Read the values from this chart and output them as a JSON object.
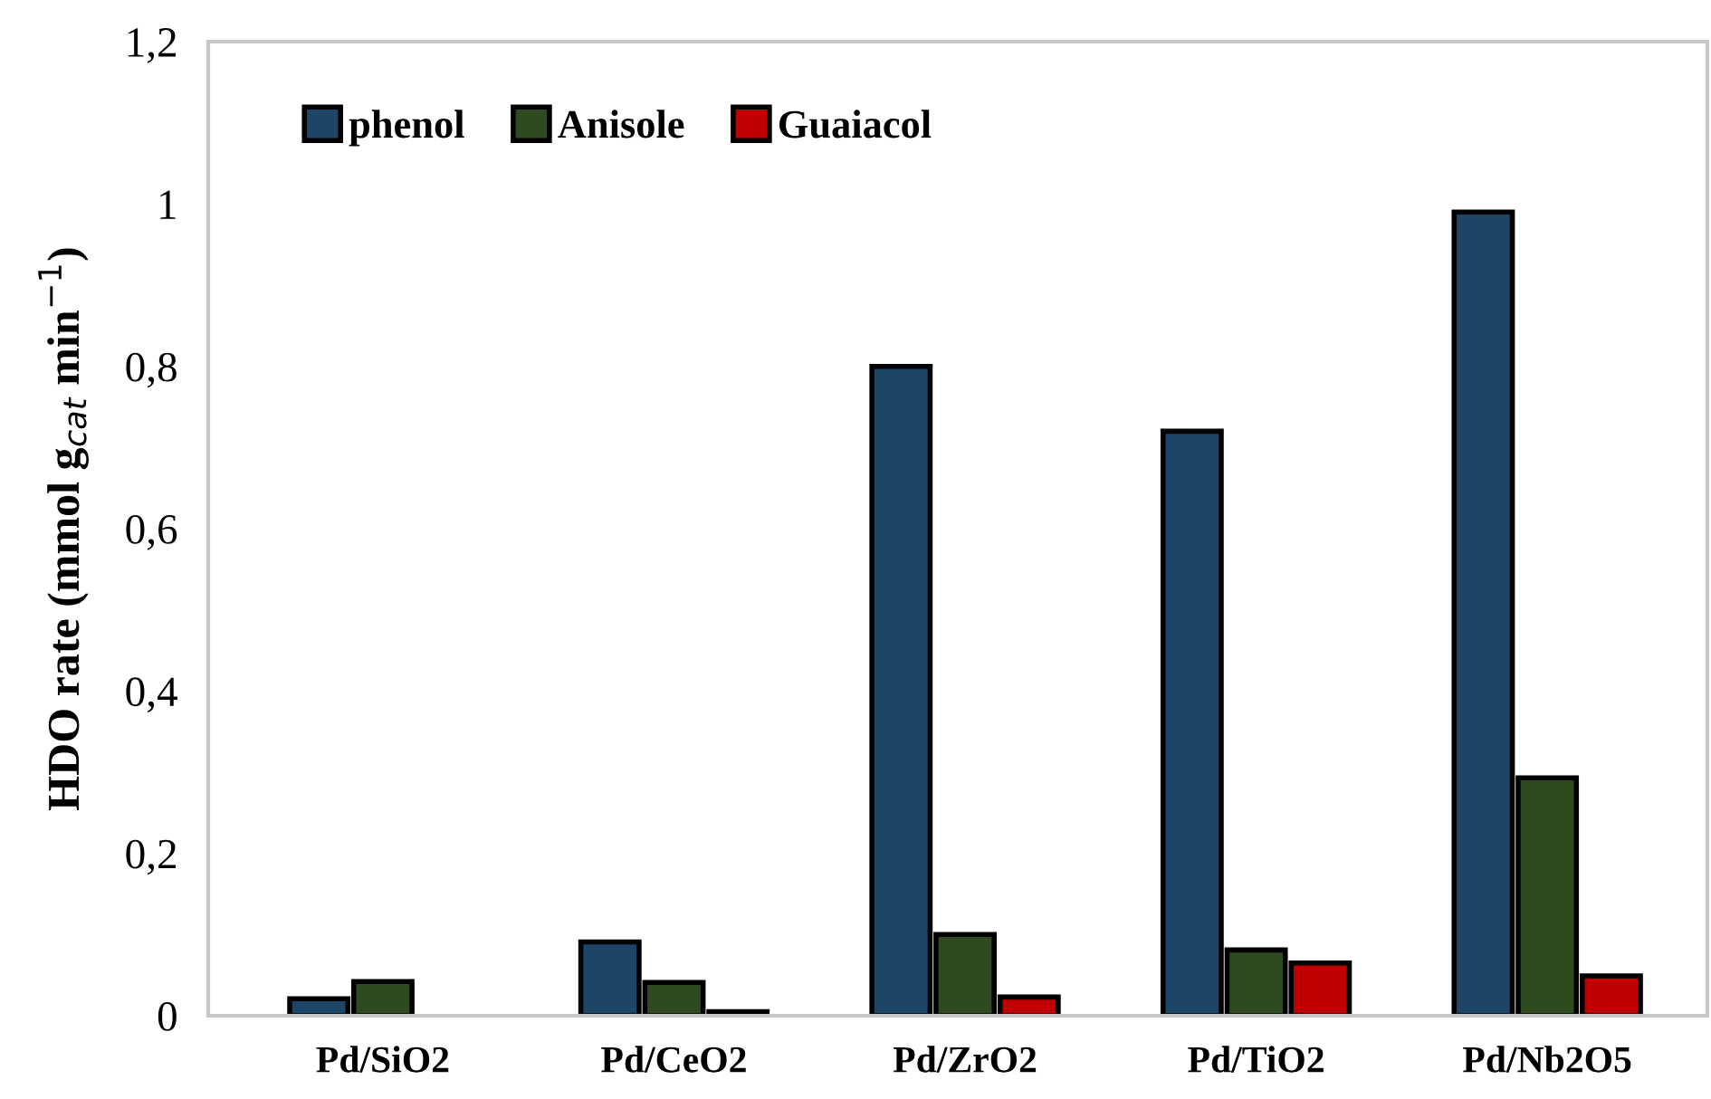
{
  "chart_data": {
    "type": "bar",
    "ylabel": "HDO rate (mmol g$_{cat}$ min$^{−1}$)",
    "categories": [
      "Pd/SiO2",
      "Pd/CeO2",
      "Pd/ZrO2",
      "Pd/TiO2",
      "Pd/Nb2O5"
    ],
    "series": [
      {
        "name": "phenol",
        "color": "#1d4568",
        "values": [
          0.021,
          0.091,
          0.8,
          0.72,
          0.99
        ]
      },
      {
        "name": "Anisole",
        "color": "#2f4a1f",
        "values": [
          0.042,
          0.041,
          0.1,
          0.081,
          0.293
        ]
      },
      {
        "name": "Guaiacol",
        "color": "#c00000",
        "values": [
          null,
          0.005,
          0.023,
          0.065,
          0.049
        ]
      }
    ],
    "ylim": [
      0,
      1.2
    ],
    "yticks": [
      {
        "value": 0,
        "label": "0"
      },
      {
        "value": 0.2,
        "label": "0,2"
      },
      {
        "value": 0.4,
        "label": "0,4"
      },
      {
        "value": 0.6,
        "label": "0,6"
      },
      {
        "value": 0.8,
        "label": "0,8"
      },
      {
        "value": 1,
        "label": "1"
      },
      {
        "value": 1.2,
        "label": "1,2"
      }
    ],
    "grid": false,
    "legend": "top left"
  }
}
